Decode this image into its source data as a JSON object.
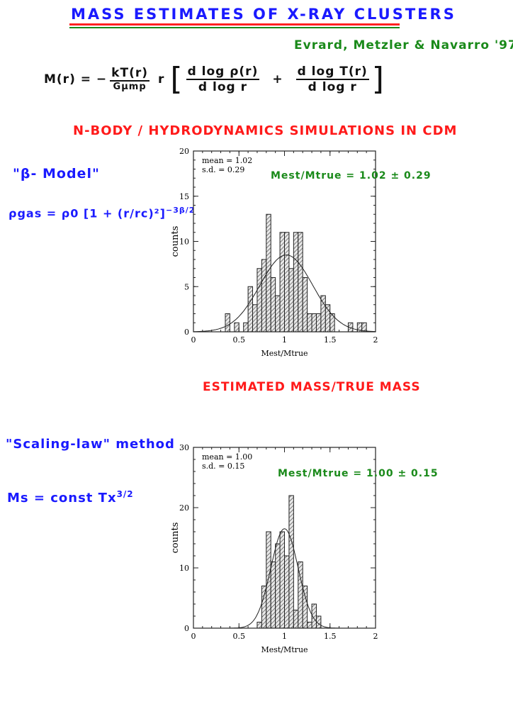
{
  "header": {
    "title": "MASS ESTIMATES OF X-RAY CLUSTERS",
    "underline_colors": [
      "#ff2020",
      "#1a8a1a"
    ],
    "reference": "Evrard, Metzler & Navarro '97"
  },
  "formula": {
    "lhs": "M(r) = −",
    "frac1_num": "kT(r)",
    "frac1_den": "Gμmp",
    "r": "r",
    "bracket_open": "[",
    "frac2_num": "d log ρ(r)",
    "frac2_den": "d log r",
    "plus": "+",
    "frac3_num": "d log T(r)",
    "frac3_den": "d log r",
    "bracket_close": "]"
  },
  "section1": {
    "heading": "N-BODY / HYDRODYNAMICS SIMULATIONS IN CDM",
    "method": "\"β- Model\"",
    "equation": "ρgas = ρ0 [1 + (r/rc)²]",
    "exponent": "−3β/2",
    "annotation": "Mest/Mtrue = 1.02 ± 0.29"
  },
  "caption_mid": "ESTIMATED MASS/TRUE MASS",
  "section2": {
    "method": "\"Scaling-law\" method",
    "equation": "Ms = const Tx",
    "exponent": "3/2",
    "annotation": "Mest/Mtrue = 1.00 ± 0.15"
  },
  "colors": {
    "blue": "#1a1aff",
    "red": "#ff1a1a",
    "green": "#1a8a1a",
    "bars": "hatched grey"
  },
  "chart_data": [
    {
      "type": "bar",
      "subtype": "histogram",
      "xlabel": "Mest/Mtrue",
      "ylabel": "counts",
      "xlim": [
        0,
        2
      ],
      "ylim": [
        0,
        20
      ],
      "xticks": [
        "0",
        "0.5",
        "1",
        "1.5",
        "2"
      ],
      "yticks": [
        "0",
        "5",
        "10",
        "15",
        "20"
      ],
      "bin_width": 0.05,
      "bin_starts": [
        0.35,
        0.45,
        0.55,
        0.6,
        0.65,
        0.7,
        0.75,
        0.8,
        0.85,
        0.9,
        0.95,
        1.0,
        1.05,
        1.1,
        1.15,
        1.2,
        1.25,
        1.3,
        1.35,
        1.4,
        1.45,
        1.5,
        1.7,
        1.8,
        1.85
      ],
      "values": [
        2,
        1,
        1,
        5,
        3,
        7,
        8,
        13,
        6,
        4,
        11,
        11,
        7,
        11,
        11,
        6,
        2,
        2,
        2,
        4,
        3,
        2,
        1,
        1,
        1
      ],
      "stats_text": [
        "mean = 1.02",
        "s.d. = 0.29"
      ],
      "fit_curve": {
        "type": "gaussian",
        "mean": 1.02,
        "sd": 0.29,
        "peak": 8.5
      }
    },
    {
      "type": "bar",
      "subtype": "histogram",
      "xlabel": "Mest/Mtrue",
      "ylabel": "counts",
      "xlim": [
        0,
        2
      ],
      "ylim": [
        0,
        30
      ],
      "xticks": [
        "0",
        "0.5",
        "1",
        "1.5",
        "2"
      ],
      "yticks": [
        "0",
        "10",
        "20",
        "30"
      ],
      "bin_width": 0.05,
      "bin_starts": [
        0.7,
        0.75,
        0.8,
        0.85,
        0.9,
        0.95,
        1.0,
        1.05,
        1.1,
        1.15,
        1.2,
        1.25,
        1.3,
        1.35
      ],
      "values": [
        1,
        7,
        16,
        11,
        14,
        16,
        12,
        22,
        3,
        11,
        7,
        1,
        4,
        2
      ],
      "stats_text": [
        "mean = 1.00",
        "s.d. = 0.15"
      ],
      "fit_curve": {
        "type": "gaussian",
        "mean": 1.0,
        "sd": 0.15,
        "peak": 16.5
      }
    }
  ]
}
